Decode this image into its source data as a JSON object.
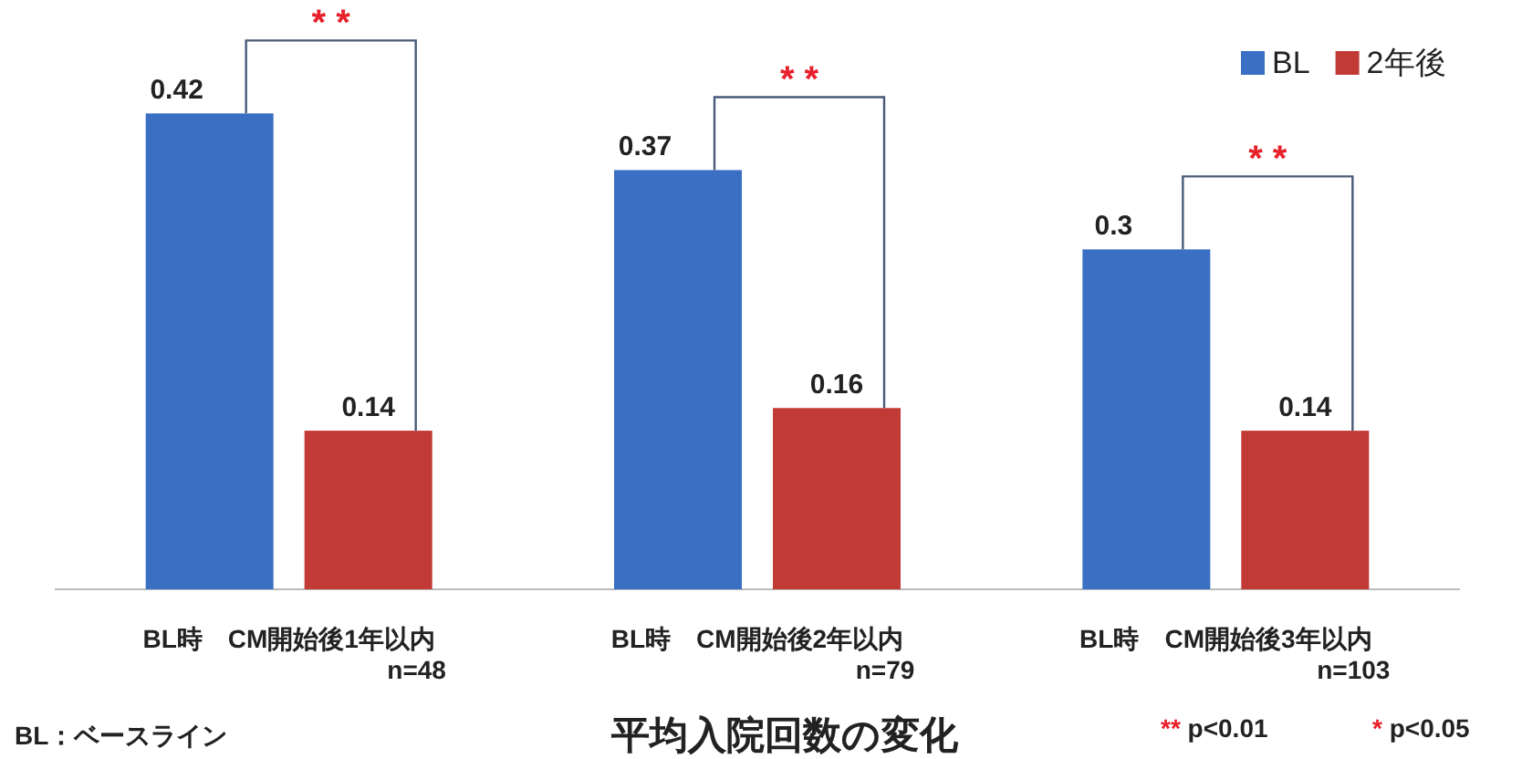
{
  "chart_data": {
    "type": "bar",
    "title": "平均入院回数の変化",
    "categories": [
      "BL時　CM開始後1年以内\nn=48",
      "BL時　CM開始後2年以内\nn=79",
      "BL時　CM開始後3年以内\nn=103"
    ],
    "series": [
      {
        "name": "BL",
        "color": "#3a6fc4",
        "values": [
          0.42,
          0.37,
          0.3
        ]
      },
      {
        "name": "2年後",
        "color": "#c23a36",
        "values": [
          0.14,
          0.16,
          0.14
        ]
      }
    ],
    "data_labels": true,
    "legend": "top right",
    "annotations": [
      "* *",
      "* *",
      "* *",
      "BL：ベースライン",
      "** p<0.01",
      "* p<0.05"
    ]
  }
}
